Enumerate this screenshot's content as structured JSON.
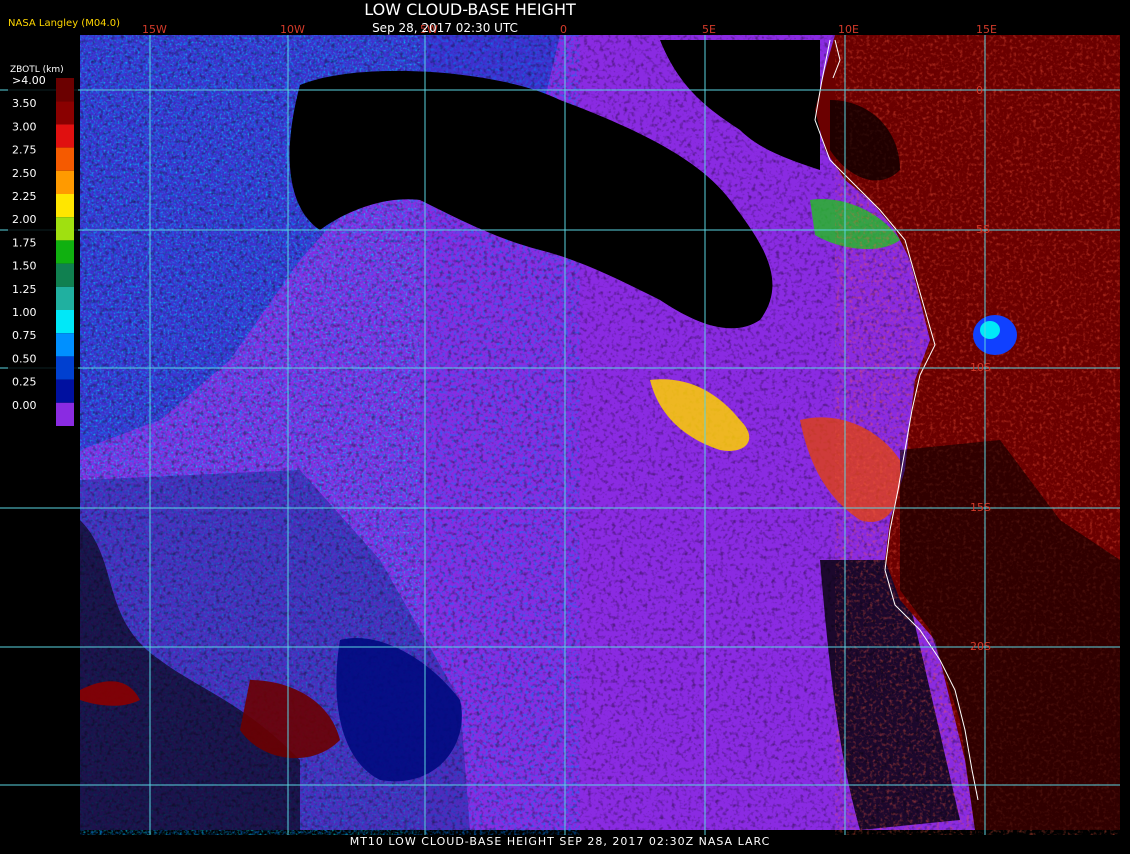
{
  "header": {
    "title": "LOW CLOUD-BASE HEIGHT",
    "subtitle": "Sep 28, 2017 02:30 UTC",
    "producer": "NASA Langley (M04.0)"
  },
  "legend": {
    "title": "ZBOTL (km)",
    "entries": [
      {
        "label": ">4.00",
        "color": "#6b0000"
      },
      {
        "label": "3.50",
        "color": "#8a0000"
      },
      {
        "label": "3.00",
        "color": "#e01010"
      },
      {
        "label": "2.75",
        "color": "#f55a00"
      },
      {
        "label": "2.50",
        "color": "#ff9a00"
      },
      {
        "label": "2.25",
        "color": "#ffe600"
      },
      {
        "label": "2.00",
        "color": "#a0e010"
      },
      {
        "label": "1.75",
        "color": "#10b010"
      },
      {
        "label": "1.50",
        "color": "#108050"
      },
      {
        "label": "1.25",
        "color": "#20b0a0"
      },
      {
        "label": "1.00",
        "color": "#00e8f8"
      },
      {
        "label": "0.75",
        "color": "#0090ff"
      },
      {
        "label": "0.50",
        "color": "#0040d0"
      },
      {
        "label": "0.25",
        "color": "#0010a0"
      },
      {
        "label": "0.00",
        "color": "#8a2be2"
      }
    ]
  },
  "lon_labels": [
    "15W",
    "10W",
    "5W",
    "0",
    "5E",
    "10E",
    "15E"
  ],
  "lat_labels": [
    "0",
    "5S",
    "10S",
    "15S",
    "20S"
  ],
  "footer": "MT10  LOW CLOUD-BASE HEIGHT   SEP 28, 2017 02:30Z   NASA LARC",
  "colors": {
    "grid": "#5ad4e0",
    "ocean_cloud": "#8a2be2",
    "clear": "#000000",
    "land_high": "#6b0000",
    "coastline": "#ffffff"
  }
}
